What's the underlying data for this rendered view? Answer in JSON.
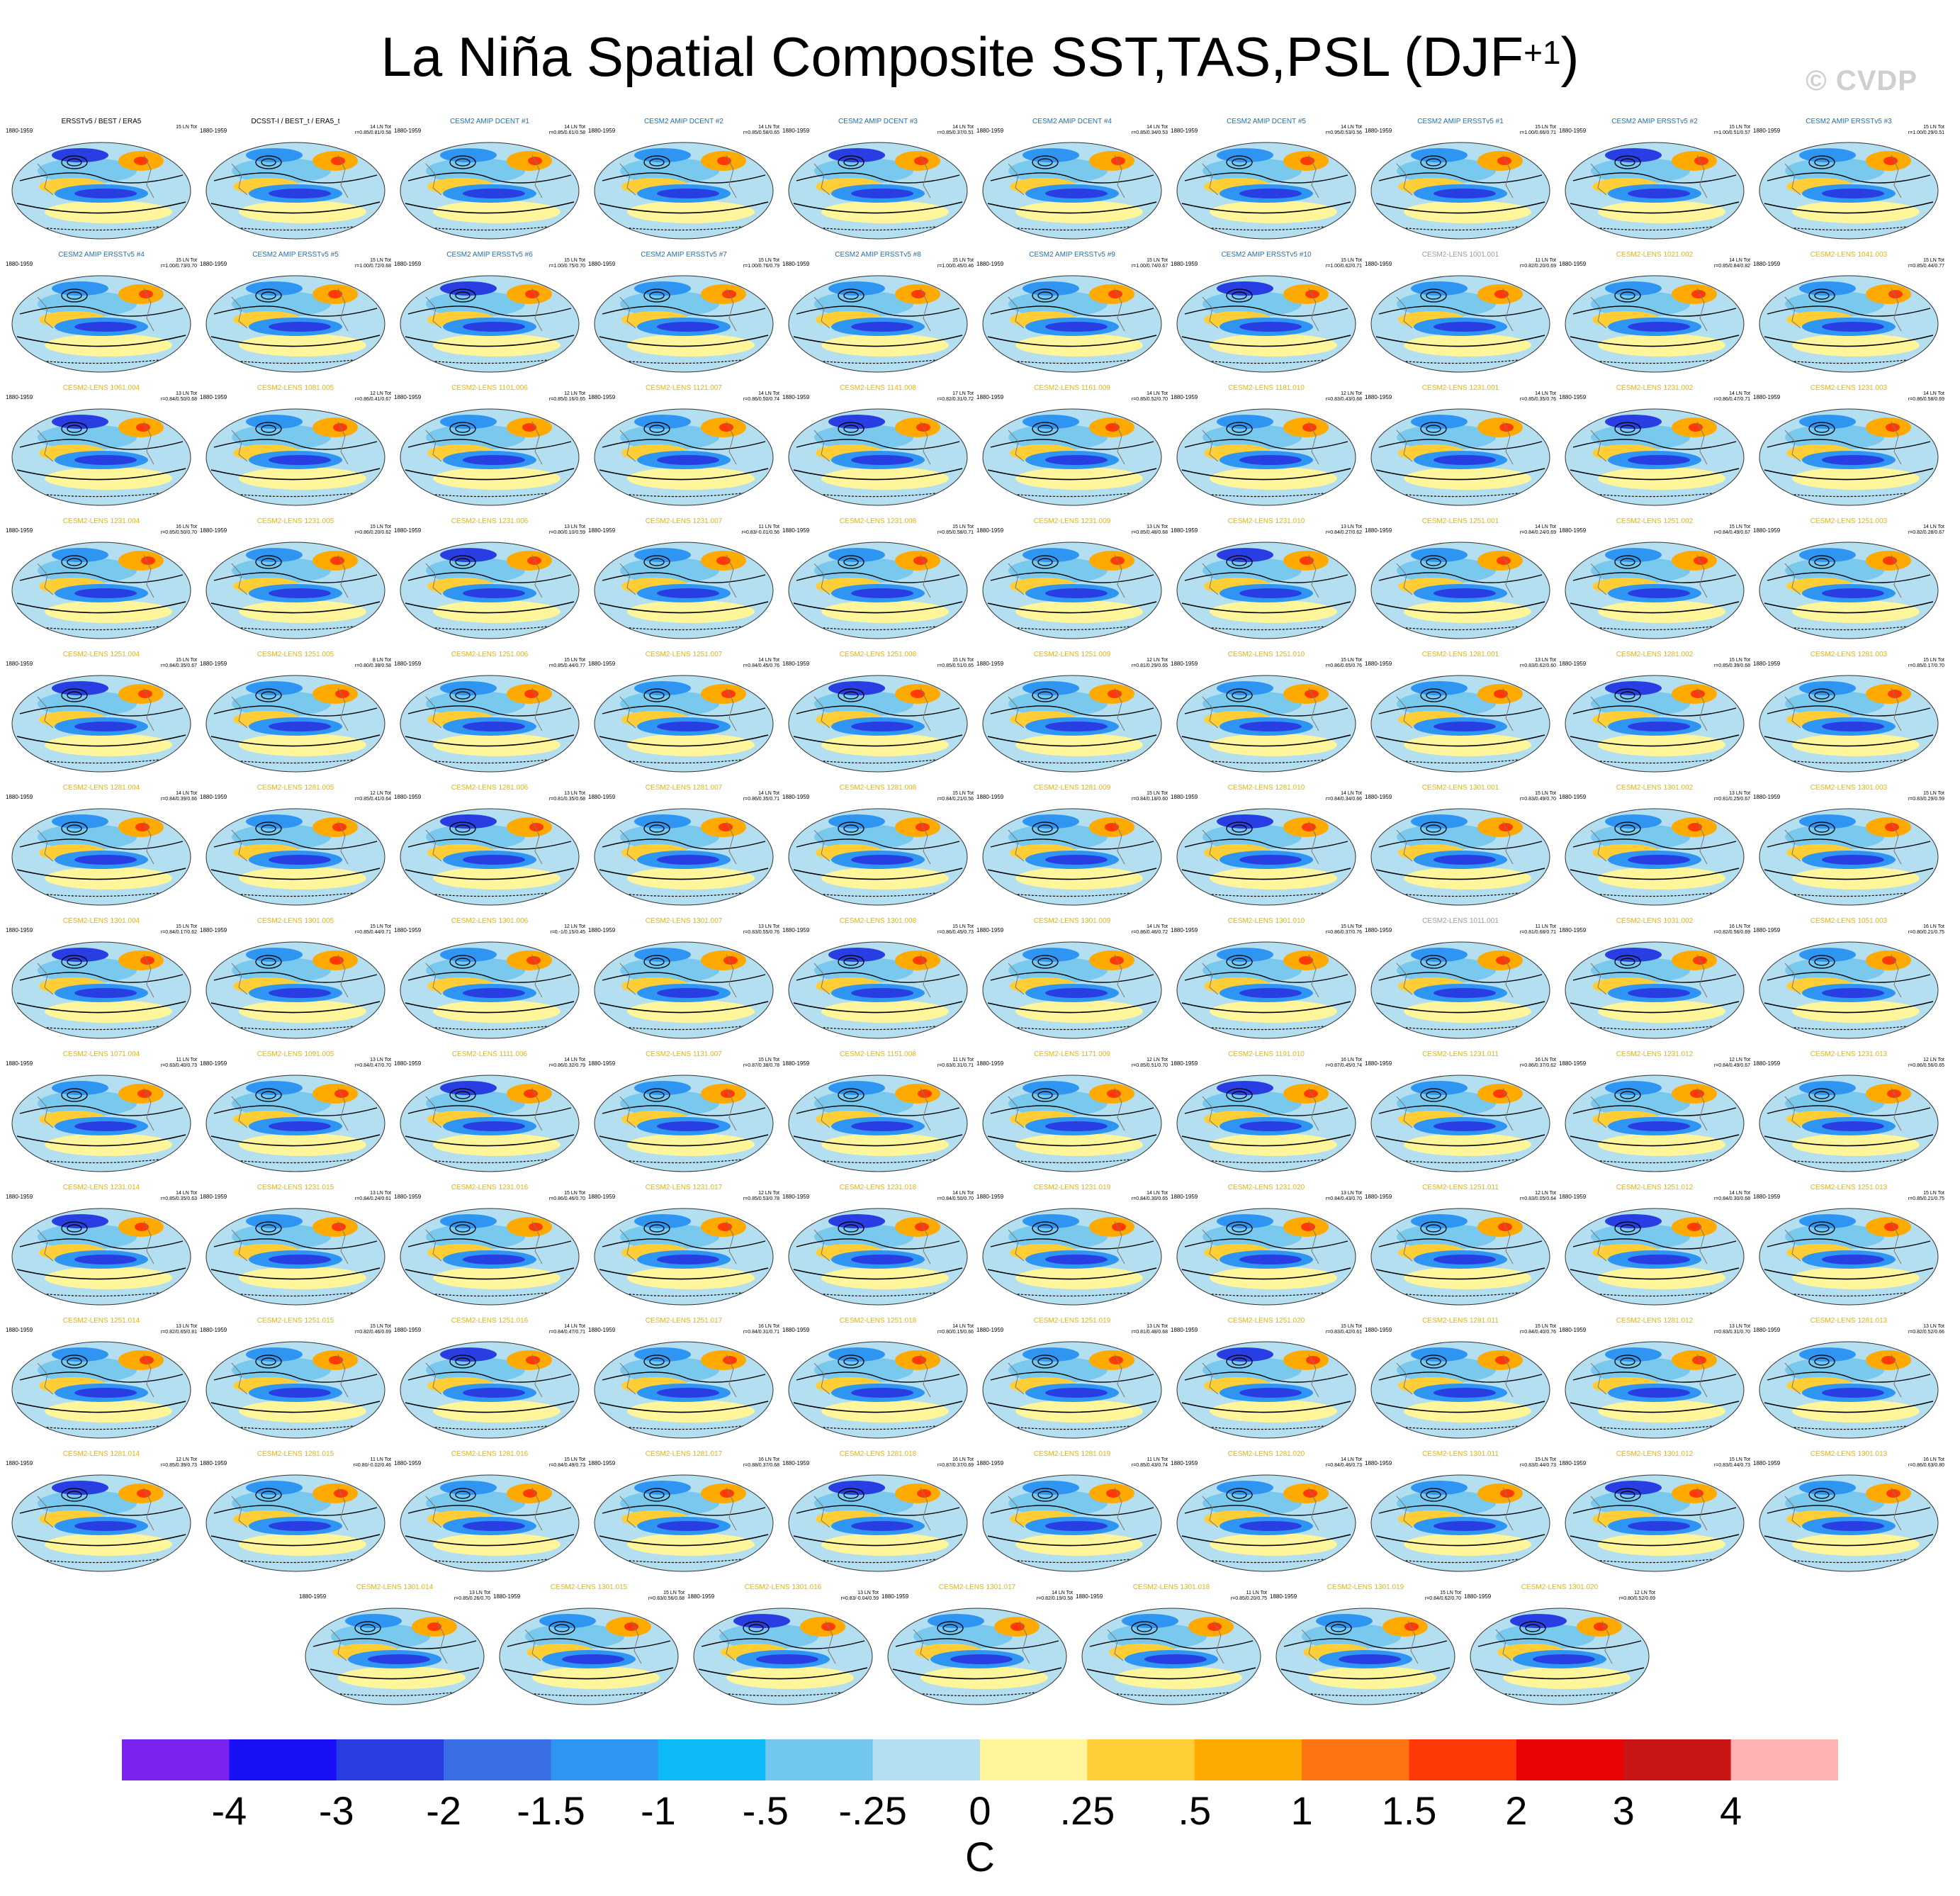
{
  "title_main": "La Niña Spatial Composite SST,TAS,PSL (DJF",
  "title_sup": "+1",
  "title_close": ")",
  "watermark": "© CVDP",
  "colors": {
    "obs_label": "#000000",
    "dcent_label": "#1f6fb4",
    "ersst_label": "#1f6fb4",
    "lens1_label": "#9a9a9a",
    "lens2_label": "#e8b400",
    "palette": [
      "#7b22ef",
      "#1a10f5",
      "#283ee2",
      "#3a6ee4",
      "#2e95f2",
      "#0cbaf5",
      "#72c7ee",
      "#b3dff1",
      "#fff59a",
      "#ffce37",
      "#ffaa00",
      "#ff7412",
      "#ff3a06",
      "#e80404",
      "#c81616",
      "#ffb3b3"
    ]
  },
  "colorbar": {
    "tick_labels": [
      "-4",
      "-3",
      "-2",
      "-1.5",
      "-1",
      "-.5",
      "-.25",
      "0",
      ".25",
      ".5",
      "1",
      "1.5",
      "2",
      "3",
      "4"
    ],
    "units": "C"
  },
  "panels": [
    {
      "label": "ERSSTv5 / BEST / ERA5",
      "period": "1880-1959",
      "stats": "15 LN Tot",
      "group": "obs"
    },
    {
      "label": "DCSST-I / BEST_t / ERA5_t",
      "period": "1880-1959",
      "stats": "14 LN Tot\nr=0.85/0.81/0.58",
      "group": "obs"
    },
    {
      "label": "CESM2 AMIP DCENT #1",
      "period": "1880-1959",
      "stats": "14 LN Tot\nr=0.85/0.61/0.58",
      "group": "dcent"
    },
    {
      "label": "CESM2 AMIP DCENT #2",
      "period": "1880-1959",
      "stats": "14 LN Tot\nr=0.85/0.58/0.65",
      "group": "dcent"
    },
    {
      "label": "CESM2 AMIP DCENT #3",
      "period": "1880-1959",
      "stats": "14 LN Tot\nr=0.85/0.37/0.51",
      "group": "dcent"
    },
    {
      "label": "CESM2 AMIP DCENT #4",
      "period": "1880-1959",
      "stats": "14 LN Tot\nr=0.85/0.34/0.53",
      "group": "dcent"
    },
    {
      "label": "CESM2 AMIP DCENT #5",
      "period": "1880-1959",
      "stats": "14 LN Tot\nr=0.95/0.53/0.56",
      "group": "dcent"
    },
    {
      "label": "CESM2 AMIP ERSSTv5 #1",
      "period": "1880-1959",
      "stats": "15 LN Tot\nr=1.00/0.66/0.71",
      "group": "ersst"
    },
    {
      "label": "CESM2 AMIP ERSSTv5 #2",
      "period": "1880-1959",
      "stats": "15 LN Tot\nr=1.00/0.51/0.57",
      "group": "ersst"
    },
    {
      "label": "CESM2 AMIP ERSSTv5 #3",
      "period": "1880-1959",
      "stats": "15 LN Tot\nr=1.00/0.29/0.51",
      "group": "ersst"
    },
    {
      "label": "CESM2 AMIP ERSSTv5 #4",
      "period": "1880-1959",
      "stats": "15 LN Tot\nr=1.00/0.73/0.70",
      "group": "ersst"
    },
    {
      "label": "CESM2 AMIP ERSSTv5 #5",
      "period": "1880-1959",
      "stats": "15 LN Tot\nr=1.00/0.72/0.68",
      "group": "ersst"
    },
    {
      "label": "CESM2 AMIP ERSSTv5 #6",
      "period": "1880-1959",
      "stats": "15 LN Tot\nr=1.00/0.75/0.70",
      "group": "ersst"
    },
    {
      "label": "CESM2 AMIP ERSSTv5 #7",
      "period": "1880-1959",
      "stats": "15 LN Tot\nr=1.00/0.76/0.79",
      "group": "ersst"
    },
    {
      "label": "CESM2 AMIP ERSSTv5 #8",
      "period": "1880-1959",
      "stats": "15 LN Tot\nr=1.00/0.45/0.46",
      "group": "ersst"
    },
    {
      "label": "CESM2 AMIP ERSSTv5 #9",
      "period": "1880-1959",
      "stats": "15 LN Tot\nr=1.00/0.74/0.67",
      "group": "ersst"
    },
    {
      "label": "CESM2 AMIP ERSSTv5 #10",
      "period": "1880-1959",
      "stats": "15 LN Tot\nr=1.00/0.62/0.71",
      "group": "ersst"
    },
    {
      "label": "CESM2-LENS 1001.001",
      "period": "1880-1959",
      "stats": "11 LN Tot\nr=0.82/0.20/0.69",
      "group": "lens1"
    },
    {
      "label": "CESM2-LENS 1021.002",
      "period": "1880-1959",
      "stats": "14 LN Tot\nr=0.85/0.84/0.82",
      "group": "lens2"
    },
    {
      "label": "CESM2-LENS 1041.003",
      "period": "1880-1959",
      "stats": "15 LN Tot\nr=0.85/0.44/0.77",
      "group": "lens2"
    },
    {
      "label": "CESM2-LENS 1061.004",
      "period": "1880-1959",
      "stats": "13 LN Tot\nr=0.84/0.50/0.68",
      "group": "lens2"
    },
    {
      "label": "CESM2-LENS 1081.005",
      "period": "1880-1959",
      "stats": "12 LN Tot\nr=0.86/0.41/0.67",
      "group": "lens2"
    },
    {
      "label": "CESM2-LENS 1101.006",
      "period": "1880-1959",
      "stats": "12 LN Tot\nr=0.85/0.16/0.65",
      "group": "lens2"
    },
    {
      "label": "CESM2-LENS 1121.007",
      "period": "1880-1959",
      "stats": "14 LN Tot\nr=0.86/0.50/0.74",
      "group": "lens2"
    },
    {
      "label": "CESM2-LENS 1141.008",
      "period": "1880-1959",
      "stats": "17 LN Tot\nr=0.82/0.31/0.72",
      "group": "lens2"
    },
    {
      "label": "CESM2-LENS 1161.009",
      "period": "1880-1959",
      "stats": "14 LN Tot\nr=0.85/0.52/0.70",
      "group": "lens2"
    },
    {
      "label": "CESM2-LENS 1181.010",
      "period": "1880-1959",
      "stats": "12 LN Tot\nr=0.83/0.43/0.68",
      "group": "lens2"
    },
    {
      "label": "CESM2-LENS 1231.001",
      "period": "1880-1959",
      "stats": "14 LN Tot\nr=0.85/0.35/0.76",
      "group": "lens2"
    },
    {
      "label": "CESM2-LENS 1231.002",
      "period": "1880-1959",
      "stats": "14 LN Tot\nr=0.86/0.47/0.71",
      "group": "lens2"
    },
    {
      "label": "CESM2-LENS 1231.003",
      "period": "1880-1959",
      "stats": "14 LN Tot\nr=0.86/0.58/0.69",
      "group": "lens2"
    },
    {
      "label": "CESM2-LENS 1231.004",
      "period": "1880-1959",
      "stats": "16 LN Tot\nr=0.85/0.50/0.70",
      "group": "lens2"
    },
    {
      "label": "CESM2-LENS 1231.005",
      "period": "1880-1959",
      "stats": "15 LN Tot\nr=0.86/0.20/0.62",
      "group": "lens2"
    },
    {
      "label": "CESM2-LENS 1231.006",
      "period": "1880-1959",
      "stats": "13 LN Tot\nr=0.80/0.10/0.59",
      "group": "lens2"
    },
    {
      "label": "CESM2-LENS 1231.007",
      "period": "1880-1959",
      "stats": "11 LN Tot\nr=0.83/-0.01/0.56",
      "group": "lens2"
    },
    {
      "label": "CESM2-LENS 1231.008",
      "period": "1880-1959",
      "stats": "15 LN Tot\nr=0.85/0.58/0.71",
      "group": "lens2"
    },
    {
      "label": "CESM2-LENS 1231.009",
      "period": "1880-1959",
      "stats": "13 LN Tot\nr=0.85/0.48/0.68",
      "group": "lens2"
    },
    {
      "label": "CESM2-LENS 1231.010",
      "period": "1880-1959",
      "stats": "13 LN Tot\nr=0.84/0.27/0.62",
      "group": "lens2"
    },
    {
      "label": "CESM2-LENS 1251.001",
      "period": "1880-1959",
      "stats": "14 LN Tot\nr=0.84/0.24/0.69",
      "group": "lens2"
    },
    {
      "label": "CESM2-LENS 1251.002",
      "period": "1880-1959",
      "stats": "15 LN Tot\nr=0.84/0.49/0.67",
      "group": "lens2"
    },
    {
      "label": "CESM2-LENS 1251.003",
      "period": "1880-1959",
      "stats": "14 LN Tot\nr=0.82/0.28/0.67",
      "group": "lens2"
    },
    {
      "label": "CESM2-LENS 1251.004",
      "period": "1880-1959",
      "stats": "15 LN Tot\nr=0.84/0.35/0.67",
      "group": "lens2"
    },
    {
      "label": "CESM2-LENS 1251.005",
      "period": "1880-1959",
      "stats": "8 LN Tot\nr=0.80/0.38/0.58",
      "group": "lens2"
    },
    {
      "label": "CESM2-LENS 1251.006",
      "period": "1880-1959",
      "stats": "15 LN Tot\nr=0.85/0.44/0.77",
      "group": "lens2"
    },
    {
      "label": "CESM2-LENS 1251.007",
      "period": "1880-1959",
      "stats": "14 LN Tot\nr=0.84/0.45/0.76",
      "group": "lens2"
    },
    {
      "label": "CESM2-LENS 1251.008",
      "period": "1880-1959",
      "stats": "15 LN Tot\nr=0.85/0.51/0.65",
      "group": "lens2"
    },
    {
      "label": "CESM2-LENS 1251.009",
      "period": "1880-1959",
      "stats": "12 LN Tot\nr=0.81/0.29/0.65",
      "group": "lens2"
    },
    {
      "label": "CESM2-LENS 1251.010",
      "period": "1880-1959",
      "stats": "15 LN Tot\nr=0.86/0.65/0.76",
      "group": "lens2"
    },
    {
      "label": "CESM2-LENS 1281.001",
      "period": "1880-1959",
      "stats": "13 LN Tot\nr=0.83/0.62/0.60",
      "group": "lens2"
    },
    {
      "label": "CESM2-LENS 1281.002",
      "period": "1880-1959",
      "stats": "15 LN Tot\nr=0.85/0.39/0.68",
      "group": "lens2"
    },
    {
      "label": "CESM2-LENS 1281.003",
      "period": "1880-1959",
      "stats": "15 LN Tot\nr=0.85/0.17/0.70",
      "group": "lens2"
    },
    {
      "label": "CESM2-LENS 1281.004",
      "period": "1880-1959",
      "stats": "14 LN Tot\nr=0.84/0.39/0.66",
      "group": "lens2"
    },
    {
      "label": "CESM2-LENS 1281.005",
      "period": "1880-1959",
      "stats": "12 LN Tot\nr=0.85/0.41/0.64",
      "group": "lens2"
    },
    {
      "label": "CESM2-LENS 1281.006",
      "period": "1880-1959",
      "stats": "13 LN Tot\nr=0.81/0.35/0.68",
      "group": "lens2"
    },
    {
      "label": "CESM2-LENS 1281.007",
      "period": "1880-1959",
      "stats": "14 LN Tot\nr=0.86/0.35/0.71",
      "group": "lens2"
    },
    {
      "label": "CESM2-LENS 1281.008",
      "period": "1880-1959",
      "stats": "15 LN Tot\nr=0.84/0.21/0.56",
      "group": "lens2"
    },
    {
      "label": "CESM2-LENS 1281.009",
      "period": "1880-1959",
      "stats": "15 LN Tot\nr=0.84/0.18/0.60",
      "group": "lens2"
    },
    {
      "label": "CESM2-LENS 1281.010",
      "period": "1880-1959",
      "stats": "14 LN Tot\nr=0.84/0.34/0.66",
      "group": "lens2"
    },
    {
      "label": "CESM2-LENS 1301.001",
      "period": "1880-1959",
      "stats": "15 LN Tot\nr=0.83/0.49/0.70",
      "group": "lens2"
    },
    {
      "label": "CESM2-LENS 1301.002",
      "period": "1880-1959",
      "stats": "13 LN Tot\nr=0.81/0.25/0.67",
      "group": "lens2"
    },
    {
      "label": "CESM2-LENS 1301.003",
      "period": "1880-1959",
      "stats": "15 LN Tot\nr=0.83/0.29/0.59",
      "group": "lens2"
    },
    {
      "label": "CESM2-LENS 1301.004",
      "period": "1880-1959",
      "stats": "15 LN Tot\nr=0.84/0.17/0.62",
      "group": "lens2"
    },
    {
      "label": "CESM2-LENS 1301.005",
      "period": "1880-1959",
      "stats": "15 LN Tot\nr=0.85/0.44/0.71",
      "group": "lens2"
    },
    {
      "label": "CESM2-LENS 1301.006",
      "period": "1880-1959",
      "stats": "12 LN Tot\nr=0.-1/0.15/0.45",
      "group": "lens2"
    },
    {
      "label": "CESM2-LENS 1301.007",
      "period": "1880-1959",
      "stats": "13 LN Tot\nr=0.83/0.55/0.76",
      "group": "lens2"
    },
    {
      "label": "CESM2-LENS 1301.008",
      "period": "1880-1959",
      "stats": "15 LN Tot\nr=0.86/0.45/0.73",
      "group": "lens2"
    },
    {
      "label": "CESM2-LENS 1301.009",
      "period": "1880-1959",
      "stats": "14 LN Tot\nr=0.86/0.46/0.72",
      "group": "lens2"
    },
    {
      "label": "CESM2-LENS 1301.010",
      "period": "1880-1959",
      "stats": "15 LN Tot\nr=0.86/0.37/0.76",
      "group": "lens2"
    },
    {
      "label": "CESM2-LENS 1011.001",
      "period": "1880-1959",
      "stats": "11 LN Tot\nr=0.81/0.68/0.71",
      "group": "lens1"
    },
    {
      "label": "CESM2-LENS 1031.002",
      "period": "1880-1959",
      "stats": "16 LN Tot\nr=0.82/0.56/0.69",
      "group": "lens2"
    },
    {
      "label": "CESM2-LENS 1051.003",
      "period": "1880-1959",
      "stats": "16 LN Tot\nr=0.80/0.21/0.75",
      "group": "lens2"
    },
    {
      "label": "CESM2-LENS 1071.004",
      "period": "1880-1959",
      "stats": "11 LN Tot\nr=0.83/0.40/0.73",
      "group": "lens2"
    },
    {
      "label": "CESM2-LENS 1091.005",
      "period": "1880-1959",
      "stats": "13 LN Tot\nr=0.84/0.47/0.70",
      "group": "lens2"
    },
    {
      "label": "CESM2-LENS 1111.006",
      "period": "1880-1959",
      "stats": "14 LN Tot\nr=0.86/0.32/0.79",
      "group": "lens2"
    },
    {
      "label": "CESM2-LENS 1131.007",
      "period": "1880-1959",
      "stats": "15 LN Tot\nr=0.87/0.38/0.78",
      "group": "lens2"
    },
    {
      "label": "CESM2-LENS 1151.008",
      "period": "1880-1959",
      "stats": "11 LN Tot\nr=0.83/0.31/0.71",
      "group": "lens2"
    },
    {
      "label": "CESM2-LENS 1171.009",
      "period": "1880-1959",
      "stats": "12 LN Tot\nr=0.85/0.51/0.70",
      "group": "lens2"
    },
    {
      "label": "CESM2-LENS 1191.010",
      "period": "1880-1959",
      "stats": "16 LN Tot\nr=0.87/0.45/0.74",
      "group": "lens2"
    },
    {
      "label": "CESM2-LENS 1231.011",
      "period": "1880-1959",
      "stats": "16 LN Tot\nr=0.86/0.37/0.62",
      "group": "lens2"
    },
    {
      "label": "CESM2-LENS 1231.012",
      "period": "1880-1959",
      "stats": "12 LN Tot\nr=0.84/0.49/0.67",
      "group": "lens2"
    },
    {
      "label": "CESM2-LENS 1231.013",
      "period": "1880-1959",
      "stats": "12 LN Tot\nr=0.86/0.56/0.65",
      "group": "lens2"
    },
    {
      "label": "CESM2-LENS 1231.014",
      "period": "1880-1959",
      "stats": "14 LN Tot\nr=0.85/0.35/0.63",
      "group": "lens2"
    },
    {
      "label": "CESM2-LENS 1231.015",
      "period": "1880-1959",
      "stats": "13 LN Tot\nr=0.84/0.24/0.61",
      "group": "lens2"
    },
    {
      "label": "CESM2-LENS 1231.016",
      "period": "1880-1959",
      "stats": "15 LN Tot\nr=0.86/0.46/0.70",
      "group": "lens2"
    },
    {
      "label": "CESM2-LENS 1231.017",
      "period": "1880-1959",
      "stats": "12 LN Tot\nr=0.85/0.53/0.78",
      "group": "lens2"
    },
    {
      "label": "CESM2-LENS 1231.018",
      "period": "1880-1959",
      "stats": "14 LN Tot\nr=0.84/0.50/0.70",
      "group": "lens2"
    },
    {
      "label": "CESM2-LENS 1231.019",
      "period": "1880-1959",
      "stats": "14 LN Tot\nr=0.84/0.30/0.65",
      "group": "lens2"
    },
    {
      "label": "CESM2-LENS 1231.020",
      "period": "1880-1959",
      "stats": "13 LN Tot\nr=0.84/0.43/0.70",
      "group": "lens2"
    },
    {
      "label": "CESM2-LENS 1251.011",
      "period": "1880-1959",
      "stats": "12 LN Tot\nr=0.83/0.05/0.64",
      "group": "lens2"
    },
    {
      "label": "CESM2-LENS 1251.012",
      "period": "1880-1959",
      "stats": "14 LN Tot\nr=0.84/0.30/0.68",
      "group": "lens2"
    },
    {
      "label": "CESM2-LENS 1251.013",
      "period": "1880-1959",
      "stats": "15 LN Tot\nr=0.85/0.21/0.75",
      "group": "lens2"
    },
    {
      "label": "CESM2-LENS 1251.014",
      "period": "1880-1959",
      "stats": "13 LN Tot\nr=0.82/0.65/0.81",
      "group": "lens2"
    },
    {
      "label": "CESM2-LENS 1251.015",
      "period": "1880-1959",
      "stats": "15 LN Tot\nr=0.82/0.46/0.69",
      "group": "lens2"
    },
    {
      "label": "CESM2-LENS 1251.016",
      "period": "1880-1959",
      "stats": "14 LN Tot\nr=0.84/0.47/0.71",
      "group": "lens2"
    },
    {
      "label": "CESM2-LENS 1251.017",
      "period": "1880-1959",
      "stats": "16 LN Tot\nr=0.84/0.31/0.71",
      "group": "lens2"
    },
    {
      "label": "CESM2-LENS 1251.018",
      "period": "1880-1959",
      "stats": "14 LN Tot\nr=0.80/0.15/0.66",
      "group": "lens2"
    },
    {
      "label": "CESM2-LENS 1251.019",
      "period": "1880-1959",
      "stats": "13 LN Tot\nr=0.81/0.48/0.68",
      "group": "lens2"
    },
    {
      "label": "CESM2-LENS 1251.020",
      "period": "1880-1959",
      "stats": "15 LN Tot\nr=0.83/0.42/0.61",
      "group": "lens2"
    },
    {
      "label": "CESM2-LENS 1281.011",
      "period": "1880-1959",
      "stats": "15 LN Tot\nr=0.84/0.40/0.76",
      "group": "lens2"
    },
    {
      "label": "CESM2-LENS 1281.012",
      "period": "1880-1959",
      "stats": "13 LN Tot\nr=0.83/0.31/0.70",
      "group": "lens2"
    },
    {
      "label": "CESM2-LENS 1281.013",
      "period": "1880-1959",
      "stats": "13 LN Tot\nr=0.82/0.52/0.66",
      "group": "lens2"
    },
    {
      "label": "CESM2-LENS 1281.014",
      "period": "1880-1959",
      "stats": "12 LN Tot\nr=0.85/0.39/0.73",
      "group": "lens2"
    },
    {
      "label": "CESM2-LENS 1281.015",
      "period": "1880-1959",
      "stats": "11 LN Tot\nr=0.80/-0.02/0.46",
      "group": "lens2"
    },
    {
      "label": "CESM2-LENS 1281.016",
      "period": "1880-1959",
      "stats": "15 LN Tot\nr=0.84/0.49/0.73",
      "group": "lens2"
    },
    {
      "label": "CESM2-LENS 1281.017",
      "period": "1880-1959",
      "stats": "16 LN Tot\nr=0.88/0.37/0.68",
      "group": "lens2"
    },
    {
      "label": "CESM2-LENS 1281.018",
      "period": "1880-1959",
      "stats": "16 LN Tot\nr=0.87/0.37/0.69",
      "group": "lens2"
    },
    {
      "label": "CESM2-LENS 1281.019",
      "period": "1880-1959",
      "stats": "11 LN Tot\nr=0.85/0.43/0.74",
      "group": "lens2"
    },
    {
      "label": "CESM2-LENS 1281.020",
      "period": "1880-1959",
      "stats": "14 LN Tot\nr=0.84/0.46/0.73",
      "group": "lens2"
    },
    {
      "label": "CESM2-LENS 1301.011",
      "period": "1880-1959",
      "stats": "15 LN Tot\nr=0.83/0.44/0.73",
      "group": "lens2"
    },
    {
      "label": "CESM2-LENS 1301.012",
      "period": "1880-1959",
      "stats": "15 LN Tot\nr=0.83/0.44/0.73",
      "group": "lens2"
    },
    {
      "label": "CESM2-LENS 1301.013",
      "period": "1880-1959",
      "stats": "16 LN Tot\nr=0.86/0.63/0.80",
      "group": "lens2"
    },
    {
      "label": "CESM2-LENS 1301.014",
      "period": "1880-1959",
      "stats": "13 LN Tot\nr=0.85/0.26/0.70",
      "group": "lens2"
    },
    {
      "label": "CESM2-LENS 1301.015",
      "period": "1880-1959",
      "stats": "15 LN Tot\nr=0.83/0.56/0.68",
      "group": "lens2"
    },
    {
      "label": "CESM2-LENS 1301.016",
      "period": "1880-1959",
      "stats": "13 LN Tot\nr=0.83/-0.04/0.59",
      "group": "lens2"
    },
    {
      "label": "CESM2-LENS 1301.017",
      "period": "1880-1959",
      "stats": "14 LN Tot\nr=0.82/0.19/0.58",
      "group": "lens2"
    },
    {
      "label": "CESM2-LENS 1301.018",
      "period": "1880-1959",
      "stats": "11 LN Tot\nr=0.85/0.20/0.75",
      "group": "lens2"
    },
    {
      "label": "CESM2-LENS 1301.019",
      "period": "1880-1959",
      "stats": "15 LN Tot\nr=0.84/0.62/0.70",
      "group": "lens2"
    },
    {
      "label": "CESM2-LENS 1301.020",
      "period": "1880-1959",
      "stats": "12 LN Tot\nr=0.80/0.52/0.69",
      "group": "lens2"
    }
  ],
  "chart_data": {
    "type": "heatmap",
    "title": "La Niña Spatial Composite SST,TAS,PSL (DJF+1)",
    "color_levels": [
      -4,
      -3,
      -2,
      -1.5,
      -1,
      -0.5,
      -0.25,
      0,
      0.25,
      0.5,
      1,
      1.5,
      2,
      3,
      4
    ],
    "units": "C",
    "panel_count": 117,
    "layout_rows": 12,
    "grid": false,
    "legend": "bottom"
  }
}
